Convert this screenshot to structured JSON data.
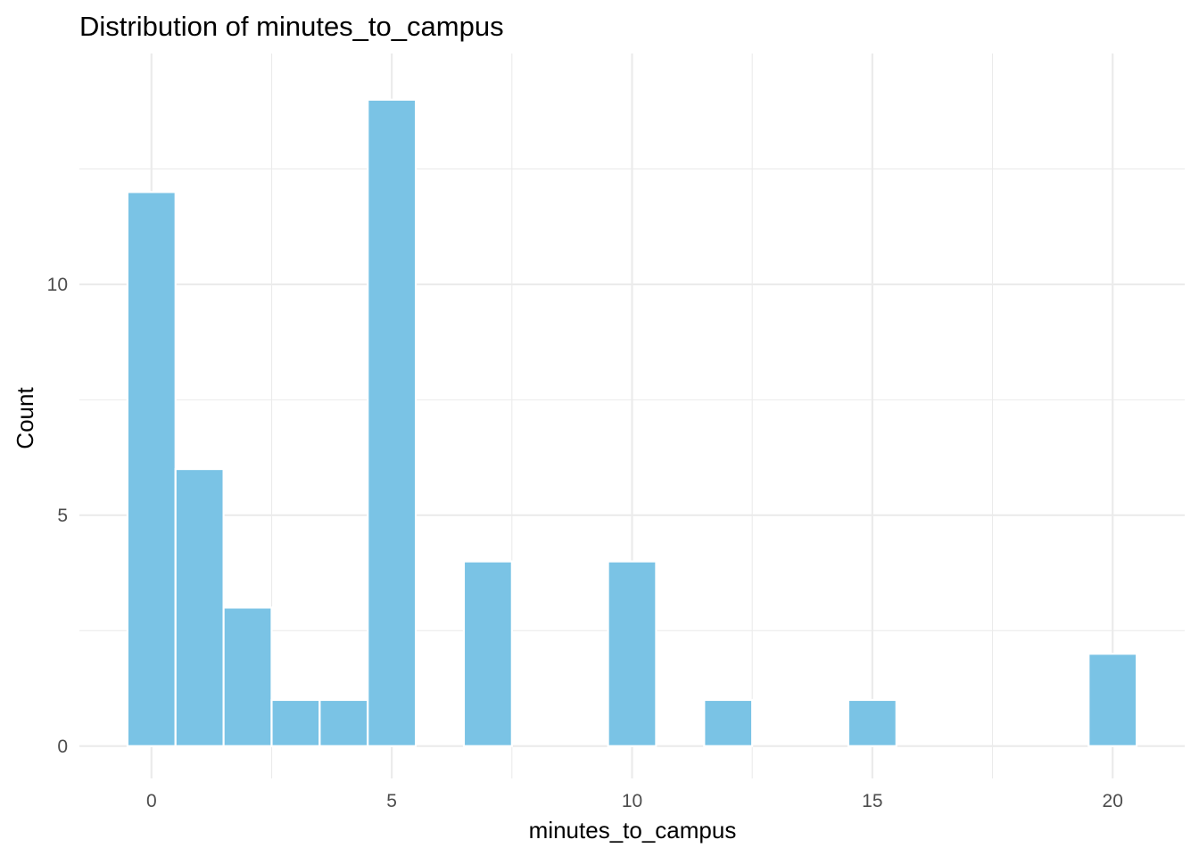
{
  "chart_data": {
    "type": "bar",
    "title": "Distribution of minutes_to_campus",
    "xlabel": "minutes_to_campus",
    "ylabel": "Count",
    "bin_width": 1,
    "bins": [
      {
        "x": 0,
        "count": 12
      },
      {
        "x": 1,
        "count": 6
      },
      {
        "x": 2,
        "count": 3
      },
      {
        "x": 3,
        "count": 1
      },
      {
        "x": 4,
        "count": 1
      },
      {
        "x": 5,
        "count": 14
      },
      {
        "x": 7,
        "count": 4
      },
      {
        "x": 10,
        "count": 4
      },
      {
        "x": 12,
        "count": 1
      },
      {
        "x": 15,
        "count": 1
      },
      {
        "x": 20,
        "count": 2
      }
    ],
    "xlim": [
      -1.5,
      21.5
    ],
    "ylim": [
      -0.7,
      15
    ],
    "x_ticks": [
      0,
      5,
      10,
      15,
      20
    ],
    "y_ticks": [
      0,
      5,
      10
    ],
    "grid": true,
    "bar_color": "#7ac3e5",
    "bar_border_color": "#ffffff",
    "grid_color": "#ebebeb"
  }
}
